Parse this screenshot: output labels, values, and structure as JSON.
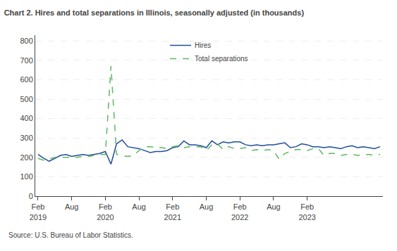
{
  "chart_data": {
    "type": "line",
    "title": "Chart 2. Hires and total separations in Illinois, seasonally adjusted (in thousands)",
    "annotations": [
      "Source: U.S. Bureau of Labor Statistics."
    ],
    "categories": [
      "Feb\n2019",
      null,
      null,
      null,
      null,
      null,
      "Aug",
      null,
      null,
      null,
      null,
      null,
      "Feb\n2020",
      null,
      null,
      null,
      null,
      null,
      "Aug",
      null,
      null,
      null,
      null,
      null,
      "Feb\n2021",
      null,
      null,
      null,
      null,
      null,
      "Aug",
      null,
      null,
      null,
      null,
      null,
      "Feb\n2022",
      null,
      null,
      null,
      null,
      null,
      "Aug",
      null,
      null,
      null,
      null,
      null,
      "Feb\n2023",
      null,
      null,
      null,
      null,
      null,
      null,
      null,
      null,
      null,
      null,
      null,
      null,
      null
    ],
    "series": [
      {
        "name": "Hires",
        "color": "#1f4e9a",
        "line_style": "solid",
        "values": [
          215,
          195,
          180,
          195,
          210,
          215,
          205,
          210,
          215,
          210,
          215,
          220,
          230,
          165,
          270,
          290,
          255,
          250,
          245,
          235,
          225,
          230,
          230,
          235,
          250,
          255,
          285,
          265,
          265,
          260,
          250,
          285,
          265,
          280,
          275,
          280,
          280,
          265,
          260,
          265,
          260,
          265,
          265,
          270,
          275,
          250,
          255,
          270,
          265,
          255,
          255,
          250,
          255,
          250,
          245,
          255,
          260,
          250,
          255,
          250,
          245,
          255
        ]
      },
      {
        "name": "Total separations",
        "color": "#5cb85c",
        "line_style": "dashed",
        "values": [
          195,
          185,
          190,
          200,
          200,
          200,
          200,
          200,
          205,
          205,
          210,
          215,
          215,
          670,
          215,
          210,
          205,
          210,
          235,
          255,
          255,
          250,
          250,
          245,
          255,
          260,
          250,
          255,
          255,
          255,
          235,
          265,
          270,
          240,
          255,
          245,
          245,
          250,
          235,
          240,
          235,
          240,
          235,
          190,
          220,
          230,
          240,
          240,
          235,
          245,
          245,
          210,
          220,
          220,
          210,
          215,
          215,
          210,
          215,
          215,
          210,
          215
        ]
      }
    ],
    "ylim": [
      0,
      830
    ],
    "yticks": [
      0,
      100,
      200,
      300,
      400,
      500,
      600,
      700,
      800
    ],
    "grid": "y",
    "legend": "upper center"
  }
}
